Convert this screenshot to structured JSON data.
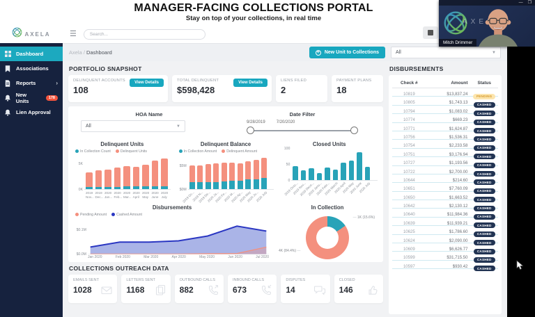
{
  "header": {
    "title": "MANAGER-FACING COLLECTIONS PORTAL",
    "subtitle": "Stay on top of your collections, in real time"
  },
  "meeting": {
    "presenter_name": "Mitch Drimmer",
    "brand": "AXELA"
  },
  "sidebar": {
    "brand": "AXELA",
    "items": [
      {
        "label": "Dashboard",
        "icon": "dashboard-icon",
        "active": true
      },
      {
        "label": "Associations",
        "icon": "bookmark-icon"
      },
      {
        "label": "Reports",
        "icon": "report-icon",
        "chevron": true
      },
      {
        "label": "New Units",
        "icon": "bell-icon",
        "badge": "178"
      },
      {
        "label": "Lien Approval",
        "icon": "bell-icon"
      }
    ]
  },
  "topbar": {
    "search_placeholder": "Search..."
  },
  "breadcrumb": {
    "root": "Axela",
    "separator": "/",
    "current": "Dashboard",
    "new_unit_button": "New Unit to Collections",
    "filter_value": "All"
  },
  "portfolio": {
    "heading": "PORTFOLIO SNAPSHOT",
    "cards": [
      {
        "label": "DELINQUENT ACCOUNTS",
        "value": "108",
        "button": "View Details"
      },
      {
        "label": "TOTAL DELINQUENT",
        "value": "$598,428",
        "button": "View Details"
      },
      {
        "label": "LIENS FILED",
        "value": "2"
      },
      {
        "label": "PAYMENT PLANS",
        "value": "18"
      }
    ]
  },
  "filters": {
    "hoa_label": "HOA Name",
    "hoa_value": "All",
    "date_label": "Date Filter",
    "date_start": "9/28/2019",
    "date_end": "7/20/2020"
  },
  "chart_data": [
    {
      "type": "bar",
      "stacked": true,
      "title": "Delinquent Units",
      "categories": [
        "2019 Nov...",
        "2019 Dec...",
        "2020 Jan...",
        "2020 Feb...",
        "2020 Mar...",
        "2020 April",
        "2020 May",
        "2020 June",
        "2020 July"
      ],
      "series": [
        {
          "name": "In Collection Count",
          "color": "#28a3b8",
          "values": [
            0.4,
            0.4,
            0.45,
            0.45,
            0.5,
            0.5,
            0.5,
            0.6,
            0.6
          ]
        },
        {
          "name": "Delinquent Units",
          "color": "#f4907e",
          "values": [
            2.9,
            3.3,
            3.35,
            3.75,
            4.0,
            3.9,
            4.3,
            4.9,
            5.4
          ]
        }
      ],
      "ylabel": "",
      "ymax": 6.5,
      "yticks": [
        {
          "label": "5K",
          "value": 5
        },
        {
          "label": "0K",
          "value": 0
        }
      ]
    },
    {
      "type": "bar",
      "stacked": true,
      "title": "Delinquent Balance",
      "categories": [
        "2019 Oc...",
        "2019 N...",
        "2019 De...",
        "2020 Ja...",
        "2020 Fe...",
        "2020 M...",
        "2020 Ap...",
        "2020 May",
        "2020 Ju...",
        "2020 July"
      ],
      "series": [
        {
          "name": "In Collection Amount",
          "color": "#28a3b8",
          "values": [
            1.5,
            1.4,
            1.5,
            1.5,
            1.6,
            1.7,
            1.7,
            2.0,
            2.1,
            2.3
          ]
        },
        {
          "name": "Delinquent Amount",
          "color": "#f4907e",
          "values": [
            3.5,
            3.6,
            3.8,
            3.9,
            3.9,
            3.9,
            3.7,
            3.9,
            4.1,
            4.2
          ]
        }
      ],
      "ylabel": "",
      "ymax": 7,
      "yticks": [
        {
          "label": "$5M",
          "value": 5
        },
        {
          "label": "$0M",
          "value": 0
        }
      ]
    },
    {
      "type": "bar",
      "title": "Closed Units",
      "categories": [
        "2019 Octo...",
        "2019 Nov...",
        "2019 Dece...",
        "2020 Janu...",
        "2020 Febr...",
        "2020 March",
        "2020 April",
        "2020 May",
        "2020 June",
        "2020 July"
      ],
      "series": [
        {
          "name": "Closed Units",
          "color": "#28a3b8",
          "values": [
            43,
            30,
            38,
            23,
            40,
            32,
            54,
            62,
            88,
            41
          ]
        }
      ],
      "ylabel": "",
      "ymax": 105,
      "yticks": [
        {
          "label": "100",
          "value": 100
        },
        {
          "label": "50",
          "value": 50
        },
        {
          "label": "0",
          "value": 0
        }
      ]
    },
    {
      "type": "area",
      "title": "Disbursements",
      "x": [
        "Jan 2020",
        "Feb 2020",
        "Mar 2020",
        "Apr 2020",
        "May 2020",
        "Jun 2020",
        "Jul 2020"
      ],
      "series": [
        {
          "name": "Pending Amount",
          "color": "#f4907e",
          "values": [
            0.002,
            0.002,
            0.002,
            0.002,
            0.003,
            0.004,
            0.03
          ]
        },
        {
          "name": "Cashed Amount",
          "color": "#2a36c2",
          "fill": "#8d9bdf",
          "values": [
            0.03,
            0.05,
            0.05,
            0.055,
            0.075,
            0.115,
            0.095
          ]
        }
      ],
      "ymax": 0.13,
      "yticks": [
        {
          "label": "$0.1M",
          "value": 0.1
        },
        {
          "label": "$0.0M",
          "value": 0
        }
      ]
    },
    {
      "type": "donut",
      "title": "In Collection",
      "slices": [
        {
          "label": "1K (15.6%)",
          "value": 15.6,
          "color": "#28a3b8"
        },
        {
          "label": "4K (84.4%)",
          "value": 84.4,
          "color": "#f4907e"
        }
      ]
    }
  ],
  "disbursements_panel": {
    "heading": "DISBURSEMENTS",
    "columns": [
      "Check #",
      "Amount",
      "Status"
    ],
    "rows": [
      [
        "10819",
        "$13,837.24",
        "PENDING"
      ],
      [
        "10805",
        "$1,743.13",
        "CASHED"
      ],
      [
        "10794",
        "$1,083.02",
        "CASHED"
      ],
      [
        "10774",
        "$669.23",
        "CASHED"
      ],
      [
        "10771",
        "$1,624.87",
        "CASHED"
      ],
      [
        "10756",
        "$1,536.31",
        "CASHED"
      ],
      [
        "10754",
        "$2,233.58",
        "CASHED"
      ],
      [
        "10751",
        "$3,176.94",
        "CASHED"
      ],
      [
        "10727",
        "$1,193.56",
        "CASHED"
      ],
      [
        "10722",
        "$2,700.00",
        "CASHED"
      ],
      [
        "10644",
        "$214.60",
        "CASHED"
      ],
      [
        "10651",
        "$7,760.09",
        "CASHED"
      ],
      [
        "10650",
        "$1,663.52",
        "CASHED"
      ],
      [
        "10642",
        "$2,130.12",
        "CASHED"
      ],
      [
        "10640",
        "$11,984.36",
        "CASHED"
      ],
      [
        "10639",
        "$11,939.21",
        "CASHED"
      ],
      [
        "10625",
        "$1,786.60",
        "CASHED"
      ],
      [
        "10624",
        "$2,090.00",
        "CASHED"
      ],
      [
        "10609",
        "$6,626.77",
        "CASHED"
      ],
      [
        "10599",
        "$31,715.50",
        "CASHED"
      ],
      [
        "10597",
        "$930.42",
        "CASHED"
      ]
    ]
  },
  "outreach": {
    "heading": "COLLECTIONS OUTREACH DATA",
    "cards": [
      {
        "label": "EMAILS SENT",
        "value": "1028",
        "icon": "envelope-icon"
      },
      {
        "label": "LETTERS SENT",
        "value": "1168",
        "icon": "documents-icon"
      },
      {
        "label": "OUTBOUND CALLS",
        "value": "882",
        "icon": "phone-outgoing-icon"
      },
      {
        "label": "INBOUND CALLS",
        "value": "673",
        "icon": "phone-incoming-icon"
      },
      {
        "label": "DISPUTES",
        "value": "14",
        "icon": "chat-icon"
      },
      {
        "label": "CLOSED",
        "value": "146",
        "icon": "thumbs-up-icon"
      }
    ]
  },
  "colors": {
    "accent_teal": "#18a7bf",
    "sidebar_navy": "#16223e",
    "salmon": "#f4907e",
    "teal_bar": "#28a3b8",
    "badge_red": "#f2543d",
    "pending_bg": "#fce5ae",
    "pending_text": "#d69a2e",
    "cashed_bg": "#223453",
    "area_line": "#2a36c2",
    "area_fill": "#8d9bdf"
  }
}
